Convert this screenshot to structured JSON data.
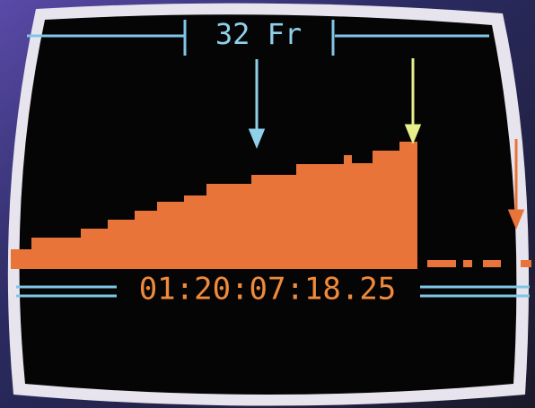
{
  "display": {
    "frame_count": "32 Fr",
    "timecode": "01:20:07:18.25"
  }
}
